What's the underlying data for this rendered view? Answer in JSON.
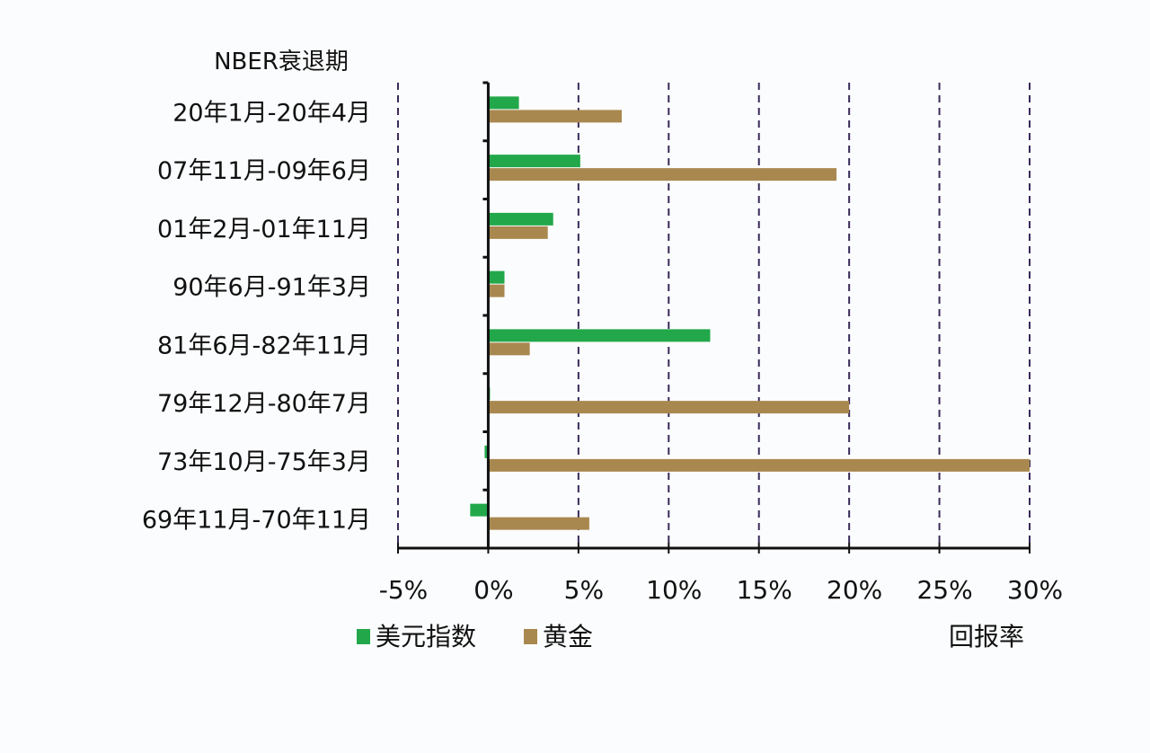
{
  "chart_data": {
    "type": "bar",
    "orientation": "horizontal",
    "title": "NBER衰退期",
    "xlabel": "回报率",
    "ylabel": "NBER衰退期",
    "categories": [
      "20年1月-20年4月",
      "07年11月-09年6月",
      "01年2月-01年11月",
      "90年6月-91年3月",
      "81年6月-82年11月",
      "79年12月-80年7月",
      "73年10月-75年3月",
      "69年11月-70年11月"
    ],
    "series": [
      {
        "name": "美元指数",
        "color": "#22a84a",
        "values": [
          1.7,
          5.1,
          3.6,
          0.9,
          12.3,
          0.1,
          -0.2,
          -1.0
        ]
      },
      {
        "name": "黄金",
        "color": "#a9884f",
        "values": [
          7.4,
          19.3,
          3.3,
          0.9,
          2.3,
          20.0,
          30.0,
          5.6
        ]
      }
    ],
    "xlim": [
      -5,
      30
    ],
    "xticks": [
      "-5%",
      "0%",
      "5%",
      "10%",
      "15%",
      "20%",
      "25%",
      "30%"
    ],
    "xtick_values": [
      -5,
      0,
      5,
      10,
      15,
      20,
      25,
      30
    ],
    "grid": {
      "vertical": true,
      "style": "dashed",
      "color": "#3a2a5a"
    },
    "legend": {
      "position": "bottom-left",
      "entries": [
        "美元指数",
        "黄金"
      ]
    }
  }
}
